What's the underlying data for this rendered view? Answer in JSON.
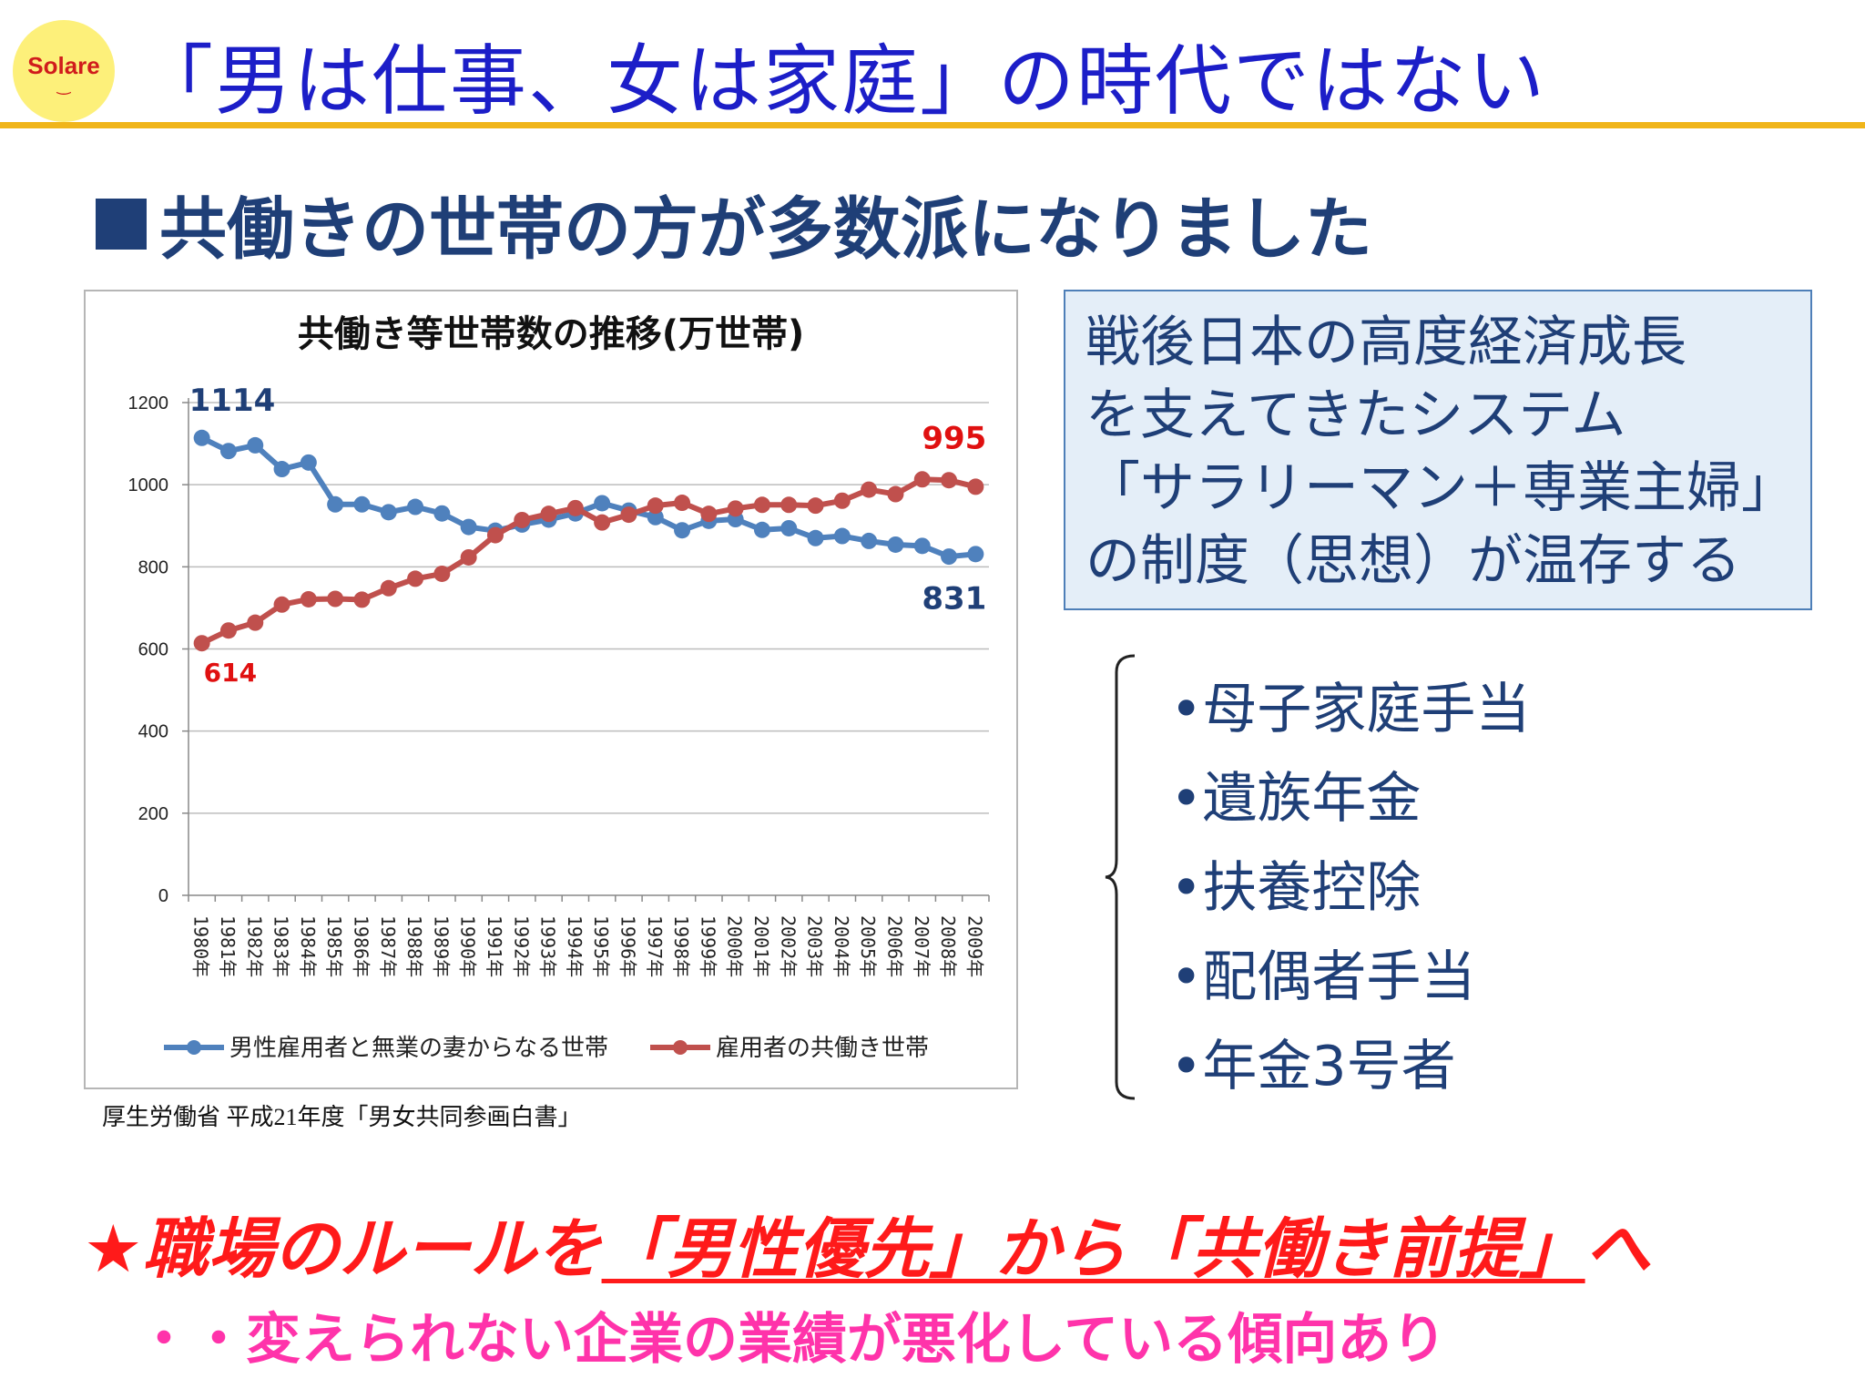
{
  "logo": {
    "text": "Solare",
    "smile": "‿"
  },
  "header": {
    "title": "「男は仕事、女は家庭」の時代ではない"
  },
  "subtitle": {
    "text": "共働きの世帯の方が多数派になりました"
  },
  "chart_data": {
    "type": "line",
    "title": "共働き等世帯数の推移(万世帯)",
    "categories": [
      "1980年",
      "1981年",
      "1982年",
      "1983年",
      "1984年",
      "1985年",
      "1986年",
      "1987年",
      "1988年",
      "1989年",
      "1990年",
      "1991年",
      "1992年",
      "1993年",
      "1994年",
      "1995年",
      "1996年",
      "1997年",
      "1998年",
      "1999年",
      "2000年",
      "2001年",
      "2002年",
      "2003年",
      "2004年",
      "2005年",
      "2006年",
      "2007年",
      "2008年",
      "2009年"
    ],
    "series": [
      {
        "name": "男性雇用者と無業の妻からなる世帯",
        "color": "#4f81bd",
        "values": [
          1114,
          1082,
          1096,
          1038,
          1054,
          952,
          952,
          933,
          946,
          930,
          897,
          888,
          903,
          915,
          930,
          955,
          937,
          921,
          889,
          912,
          916,
          890,
          894,
          870,
          875,
          863,
          854,
          851,
          825,
          831
        ]
      },
      {
        "name": "雇用者の共働き世帯",
        "color": "#c0504d",
        "values": [
          614,
          645,
          664,
          708,
          721,
          722,
          720,
          748,
          771,
          783,
          823,
          877,
          914,
          929,
          943,
          908,
          927,
          949,
          956,
          929,
          942,
          951,
          951,
          949,
          961,
          988,
          977,
          1013,
          1011,
          995
        ]
      }
    ],
    "ylim": [
      0,
      1200
    ],
    "yticks": [
      "0",
      "200",
      "400",
      "600",
      "800",
      "1000",
      "1200"
    ],
    "annotations": {
      "blue_start": "1114",
      "blue_end": "831",
      "red_start": "614",
      "red_end": "995"
    },
    "grid": true,
    "legend": "bottom"
  },
  "source": {
    "text": "厚生労働省 平成21年度「男女共同参画白書」"
  },
  "info_box": {
    "lines": [
      "戦後日本の高度経済成長",
      "を支えてきたシステム",
      "「サラリーマン＋専業主婦」",
      "の制度（思想）が温存する"
    ]
  },
  "bullets": {
    "items": [
      "•母子家庭手当",
      "•遺族年金",
      "•扶養控除",
      "•配偶者手当",
      "•年金3号者"
    ]
  },
  "headline": {
    "prefix": "★職場のルールを",
    "underlined": "「男性優先」から「共働き前提」",
    "suffix": "へ"
  },
  "subline": {
    "text": "・・変えられない企業の業績が悪化している傾向あり"
  },
  "colors": {
    "title": "#1c1ec8",
    "navy": "#1f3f77",
    "accent_rule": "#f0b51a",
    "red": "#ff1a1a",
    "pink": "#ff33aa"
  }
}
